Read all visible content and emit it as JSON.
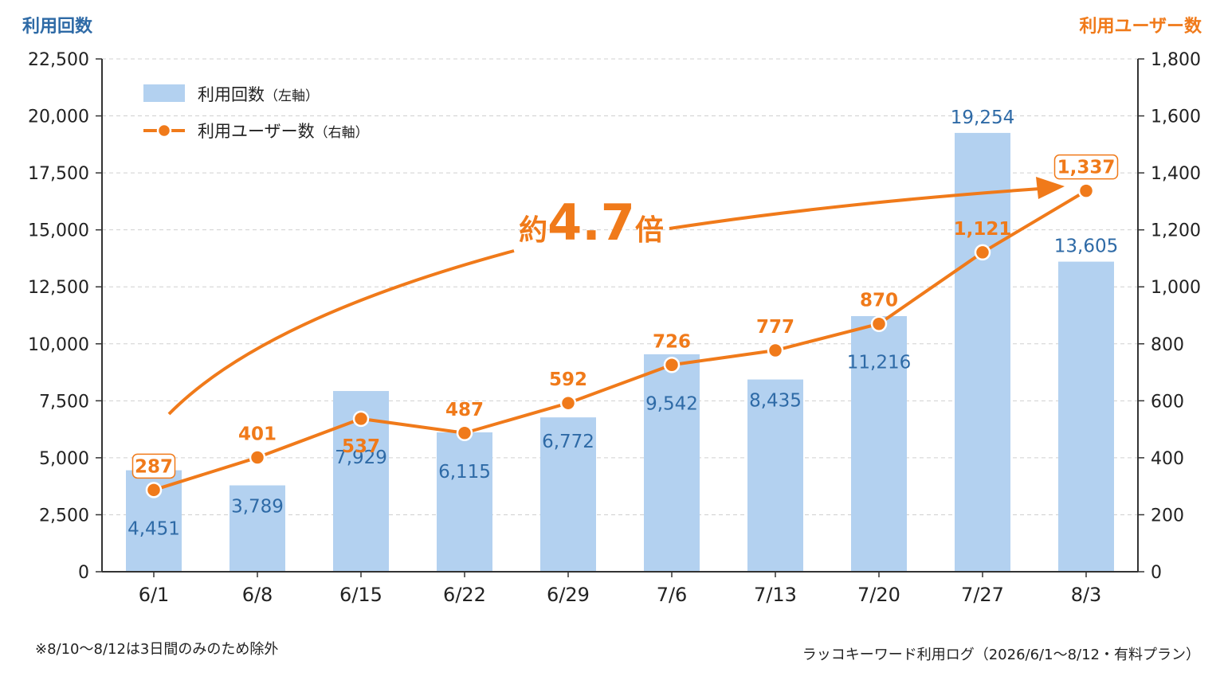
{
  "chart_data": {
    "type": "bar",
    "categories": [
      "6/1",
      "6/8",
      "6/15",
      "6/22",
      "6/29",
      "7/6",
      "7/13",
      "7/20",
      "7/27",
      "8/3"
    ],
    "series": [
      {
        "name": "利用回数",
        "name_suffix": "（左軸）",
        "type": "bar",
        "axis": "left",
        "values": [
          4451,
          3789,
          7929,
          6115,
          6772,
          9542,
          8435,
          11216,
          19254,
          13605
        ],
        "labels": [
          "4,451",
          "3,789",
          "7,929",
          "6,115",
          "6,772",
          "9,542",
          "8,435",
          "11,216",
          "19,254",
          "13,605"
        ]
      },
      {
        "name": "利用ユーザー数",
        "name_suffix": "（右軸）",
        "type": "line",
        "axis": "right",
        "values": [
          287,
          401,
          537,
          487,
          592,
          726,
          777,
          870,
          1121,
          1337
        ],
        "labels": [
          "287",
          "401",
          "537",
          "487",
          "592",
          "726",
          "777",
          "870",
          "1,121",
          "1,337"
        ]
      }
    ],
    "y_left": {
      "label": "利用回数",
      "range": [
        0,
        22500
      ],
      "ticks": [
        0,
        2500,
        5000,
        7500,
        10000,
        12500,
        15000,
        17500,
        20000,
        22500
      ],
      "tick_labels": [
        "0",
        "2,500",
        "5,000",
        "7,500",
        "10,000",
        "12,500",
        "15,000",
        "17,500",
        "20,000",
        "22,500"
      ]
    },
    "y_right": {
      "label": "利用ユーザー数",
      "range": [
        0,
        1800
      ],
      "ticks": [
        0,
        200,
        400,
        600,
        800,
        1000,
        1200,
        1400,
        1600,
        1800
      ],
      "tick_labels": [
        "0",
        "200",
        "400",
        "600",
        "800",
        "1,000",
        "1,200",
        "1,400",
        "1,600",
        "1,800"
      ]
    },
    "grid": true,
    "legend_position": "top-left",
    "annotation": {
      "prefix": "約",
      "value": "4.7",
      "suffix": "倍"
    },
    "footnote": "※8/10〜8/12は3日間のみのため除外",
    "source": "ラッコキーワード利用ログ（2026/6/1〜8/12・有料プラン）",
    "colors": {
      "bar": "#b3d1f0",
      "bar_label": "#2e6aa6",
      "line": "#f07a1a",
      "axis": "#333333",
      "grid": "#d0d0d0"
    }
  }
}
